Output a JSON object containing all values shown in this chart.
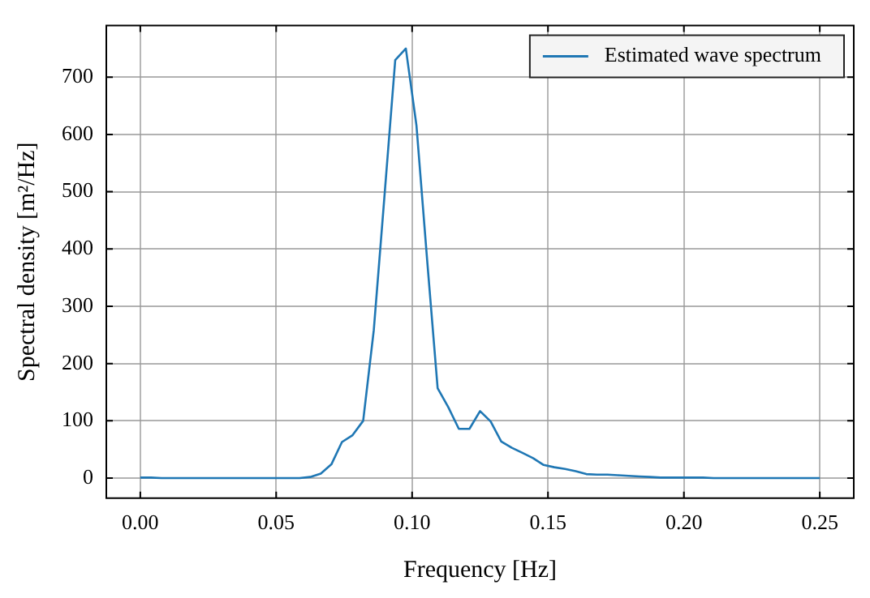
{
  "chart_data": {
    "type": "line",
    "xlabel": "Frequency [Hz]",
    "ylabel": "Spectral density [m²/Hz]",
    "xlim": [
      -0.0125,
      0.2625
    ],
    "ylim": [
      -35,
      790
    ],
    "xticks": [
      {
        "value": 0,
        "label": "0.00"
      },
      0.05,
      {
        "value": 0.1,
        "label": "0.10"
      },
      0.15,
      {
        "value": 0.2,
        "label": "0.20"
      },
      0.25
    ],
    "yticks": [
      0,
      100,
      200,
      300,
      400,
      500,
      600,
      700
    ],
    "grid": true,
    "legend": "top right",
    "marker": "none",
    "line_style": "solid",
    "series": [
      {
        "name": "Estimated wave spectrum",
        "color": "#1f77b4",
        "x": [
          0,
          0.0039,
          0.0078,
          0.0117,
          0.0156,
          0.0195,
          0.0234,
          0.0273,
          0.0313,
          0.0352,
          0.0391,
          0.043,
          0.0469,
          0.0508,
          0.0547,
          0.0586,
          0.0625,
          0.0664,
          0.0703,
          0.0742,
          0.0781,
          0.082,
          0.0859,
          0.0898,
          0.0938,
          0.0977,
          0.1016,
          0.1055,
          0.1094,
          0.1133,
          0.1172,
          0.1211,
          0.125,
          0.1289,
          0.1328,
          0.1367,
          0.1406,
          0.1445,
          0.1484,
          0.1523,
          0.1563,
          0.1602,
          0.1641,
          0.168,
          0.1719,
          0.1758,
          0.1797,
          0.1836,
          0.1875,
          0.1914,
          0.1953,
          0.1992,
          0.2031,
          0.207,
          0.2109,
          0.2148,
          0.2188,
          0.2227,
          0.2266,
          0.2305,
          0.2344,
          0.2383,
          0.2422,
          0.2461,
          0.25
        ],
        "values": [
          1,
          1,
          0,
          0,
          0,
          0,
          0,
          0,
          0,
          0,
          0,
          0,
          0,
          0,
          0,
          0,
          2,
          8,
          24,
          63,
          75,
          100,
          258,
          490,
          730,
          750,
          616,
          383,
          157,
          124,
          86,
          86,
          117,
          99,
          64,
          53,
          44,
          35,
          23,
          19,
          16,
          12,
          7,
          6,
          6,
          5,
          4,
          3,
          2,
          1,
          1,
          1,
          1,
          1,
          0,
          0,
          0,
          0,
          0,
          0,
          0,
          0,
          0,
          0,
          0
        ]
      }
    ]
  }
}
